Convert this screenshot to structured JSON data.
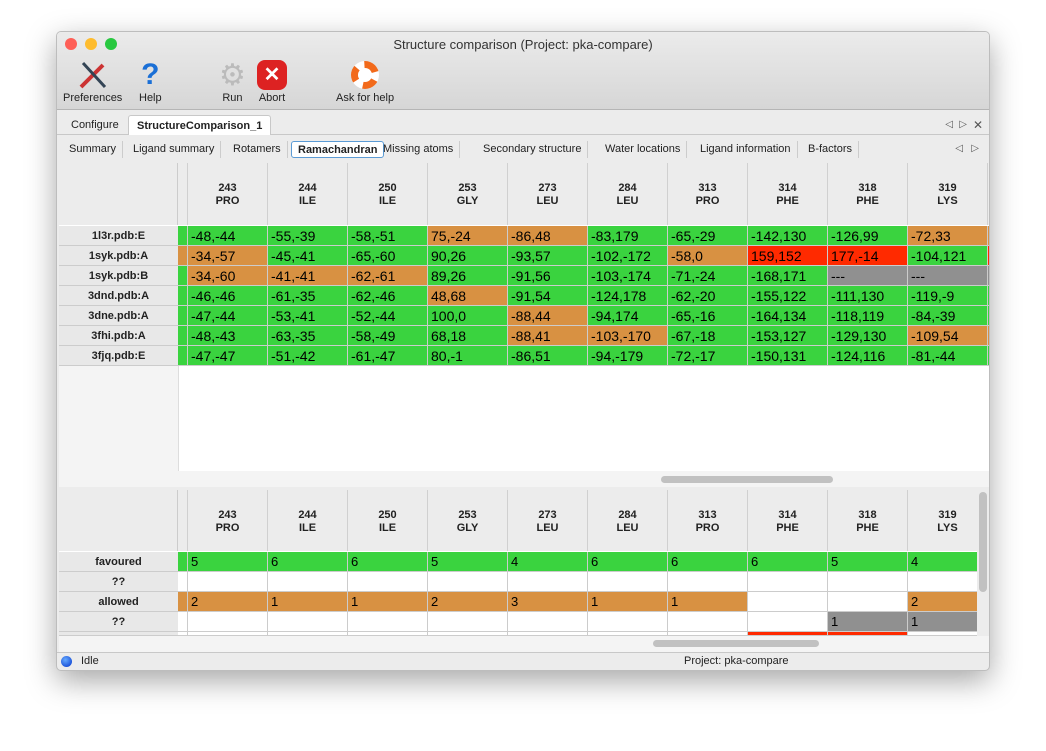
{
  "window": {
    "title": "Structure comparison (Project: pka-compare)"
  },
  "toolbar": {
    "preferences": "Preferences",
    "help": "Help",
    "run": "Run",
    "abort": "Abort",
    "ask_for_help": "Ask for help"
  },
  "tabs": [
    "Configure",
    "StructureComparison_1"
  ],
  "active_tab": 1,
  "subtabs": [
    "Summary",
    "Ligand summary",
    "Rotamers",
    "Ramachandran",
    "Missing atoms",
    "Secondary structure",
    "Water locations",
    "Ligand information",
    "B-factors"
  ],
  "active_subtab": 3,
  "colors": {
    "favoured": "#3ad33f",
    "allowed": "#d89142",
    "outlier": "#ff2a00",
    "missing": "#909090"
  },
  "columns": [
    [
      "243",
      "PRO"
    ],
    [
      "244",
      "ILE"
    ],
    [
      "250",
      "ILE"
    ],
    [
      "253",
      "GLY"
    ],
    [
      "273",
      "LEU"
    ],
    [
      "284",
      "LEU"
    ],
    [
      "313",
      "PRO"
    ],
    [
      "314",
      "PHE"
    ],
    [
      "318",
      "PHE"
    ],
    [
      "319",
      "LYS"
    ]
  ],
  "top_table": {
    "rows": [
      "1l3r.pdb:E",
      "1syk.pdb:A",
      "1syk.pdb:B",
      "3dnd.pdb:A",
      "3dne.pdb:A",
      "3fhi.pdb:A",
      "3fjq.pdb:E"
    ],
    "lead_status": [
      "f",
      "a",
      "f",
      "f",
      "f",
      "f",
      "f"
    ],
    "trail_status": [
      "a",
      "o",
      "m",
      "f",
      "f",
      "a",
      "f"
    ],
    "cells": [
      [
        [
          "-48,-44",
          "f"
        ],
        [
          "-55,-39",
          "f"
        ],
        [
          "-58,-51",
          "f"
        ],
        [
          "75,-24",
          "a"
        ],
        [
          "-86,48",
          "a"
        ],
        [
          "-83,179",
          "f"
        ],
        [
          "-65,-29",
          "f"
        ],
        [
          "-142,130",
          "f"
        ],
        [
          "-126,99",
          "f"
        ],
        [
          "-72,33",
          "a"
        ]
      ],
      [
        [
          "-34,-57",
          "a"
        ],
        [
          "-45,-41",
          "f"
        ],
        [
          "-65,-60",
          "f"
        ],
        [
          "90,26",
          "f"
        ],
        [
          "-93,57",
          "f"
        ],
        [
          "-102,-172",
          "f"
        ],
        [
          "-58,0",
          "a"
        ],
        [
          "159,152",
          "o"
        ],
        [
          "177,-14",
          "o"
        ],
        [
          "-104,121",
          "f"
        ]
      ],
      [
        [
          "-34,-60",
          "a"
        ],
        [
          "-41,-41",
          "a"
        ],
        [
          "-62,-61",
          "a"
        ],
        [
          "89,26",
          "f"
        ],
        [
          "-91,56",
          "f"
        ],
        [
          "-103,-174",
          "f"
        ],
        [
          "-71,-24",
          "f"
        ],
        [
          "-168,171",
          "f"
        ],
        [
          "---",
          "m"
        ],
        [
          "---",
          "m"
        ]
      ],
      [
        [
          "-46,-46",
          "f"
        ],
        [
          "-61,-35",
          "f"
        ],
        [
          "-62,-46",
          "f"
        ],
        [
          "48,68",
          "a"
        ],
        [
          "-91,54",
          "f"
        ],
        [
          "-124,178",
          "f"
        ],
        [
          "-62,-20",
          "f"
        ],
        [
          "-155,122",
          "f"
        ],
        [
          "-111,130",
          "f"
        ],
        [
          "-119,-9",
          "f"
        ]
      ],
      [
        [
          "-47,-44",
          "f"
        ],
        [
          "-53,-41",
          "f"
        ],
        [
          "-52,-44",
          "f"
        ],
        [
          "100,0",
          "f"
        ],
        [
          "-88,44",
          "a"
        ],
        [
          "-94,174",
          "f"
        ],
        [
          "-65,-16",
          "f"
        ],
        [
          "-164,134",
          "f"
        ],
        [
          "-118,119",
          "f"
        ],
        [
          "-84,-39",
          "f"
        ]
      ],
      [
        [
          "-48,-43",
          "f"
        ],
        [
          "-63,-35",
          "f"
        ],
        [
          "-58,-49",
          "f"
        ],
        [
          "68,18",
          "f"
        ],
        [
          "-88,41",
          "a"
        ],
        [
          "-103,-170",
          "a"
        ],
        [
          "-67,-18",
          "f"
        ],
        [
          "-153,127",
          "f"
        ],
        [
          "-129,130",
          "f"
        ],
        [
          "-109,54",
          "a"
        ]
      ],
      [
        [
          "-47,-47",
          "f"
        ],
        [
          "-51,-42",
          "f"
        ],
        [
          "-61,-47",
          "f"
        ],
        [
          "80,-1",
          "f"
        ],
        [
          "-86,51",
          "f"
        ],
        [
          "-94,-179",
          "f"
        ],
        [
          "-72,-17",
          "f"
        ],
        [
          "-150,131",
          "f"
        ],
        [
          "-124,116",
          "f"
        ],
        [
          "-81,-44",
          "f"
        ]
      ]
    ]
  },
  "bottom_table": {
    "rows": [
      "favoured",
      "??",
      "allowed",
      "??",
      ""
    ],
    "cells": [
      [
        [
          "5",
          "f"
        ],
        [
          "6",
          "f"
        ],
        [
          "6",
          "f"
        ],
        [
          "5",
          "f"
        ],
        [
          "4",
          "f"
        ],
        [
          "6",
          "f"
        ],
        [
          "6",
          "f"
        ],
        [
          "6",
          "f"
        ],
        [
          "5",
          "f"
        ],
        [
          "4",
          "f"
        ]
      ],
      [
        [
          "",
          ""
        ],
        [
          "",
          ""
        ],
        [
          "",
          ""
        ],
        [
          "",
          ""
        ],
        [
          "",
          ""
        ],
        [
          "",
          ""
        ],
        [
          "",
          ""
        ],
        [
          "",
          ""
        ],
        [
          "",
          ""
        ],
        [
          "",
          ""
        ]
      ],
      [
        [
          "2",
          "a"
        ],
        [
          "1",
          "a"
        ],
        [
          "1",
          "a"
        ],
        [
          "2",
          "a"
        ],
        [
          "3",
          "a"
        ],
        [
          "1",
          "a"
        ],
        [
          "1",
          "a"
        ],
        [
          "",
          ""
        ],
        [
          "",
          ""
        ],
        [
          "2",
          "a"
        ]
      ],
      [
        [
          "",
          ""
        ],
        [
          "",
          ""
        ],
        [
          "",
          ""
        ],
        [
          "",
          ""
        ],
        [
          "",
          ""
        ],
        [
          "",
          ""
        ],
        [
          "",
          ""
        ],
        [
          "",
          ""
        ],
        [
          "1",
          "m"
        ],
        [
          "1",
          "m"
        ]
      ],
      [
        [
          "",
          ""
        ],
        [
          "",
          ""
        ],
        [
          "",
          ""
        ],
        [
          "",
          ""
        ],
        [
          "",
          ""
        ],
        [
          "",
          ""
        ],
        [
          "",
          ""
        ],
        [
          "",
          "o"
        ],
        [
          "",
          "o"
        ],
        [
          "",
          ""
        ]
      ]
    ]
  },
  "status": {
    "state": "Idle",
    "project": "Project: pka-compare"
  }
}
